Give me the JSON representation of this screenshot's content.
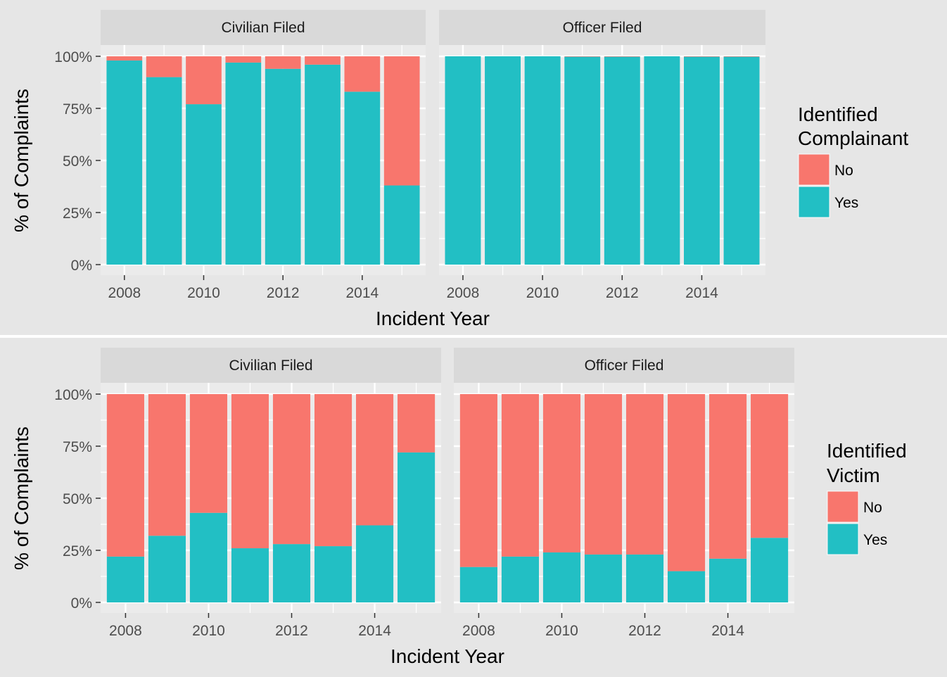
{
  "colors": {
    "no": "#F8766D",
    "yes": "#22BFC4",
    "panel_bg": "#EBEBEB",
    "strip_bg": "#D9D9D9",
    "figure_bg": "#E6E6E6",
    "grid": "#FFFFFF"
  },
  "chart_data": [
    {
      "type": "bar",
      "stacked": true,
      "xlabel": "Incident Year",
      "ylabel": "% of Complaints",
      "ylim": [
        0,
        1
      ],
      "y_ticks": [
        "0%",
        "25%",
        "50%",
        "75%",
        "100%"
      ],
      "x_ticks": [
        "2008",
        "2010",
        "2012",
        "2014"
      ],
      "legend": {
        "title_lines": [
          "Identified",
          "Complainant"
        ],
        "items": [
          "No",
          "Yes"
        ],
        "placement": "right"
      },
      "categories": [
        2008,
        2009,
        2010,
        2011,
        2012,
        2013,
        2014,
        2015
      ],
      "facets": [
        {
          "label": "Civilian Filed",
          "series": [
            {
              "name": "No",
              "values": [
                0.02,
                0.1,
                0.23,
                0.03,
                0.06,
                0.04,
                0.17,
                0.62
              ]
            },
            {
              "name": "Yes",
              "values": [
                0.98,
                0.9,
                0.77,
                0.97,
                0.94,
                0.96,
                0.83,
                0.38
              ]
            }
          ]
        },
        {
          "label": "Officer Filed",
          "series": [
            {
              "name": "No",
              "values": [
                0.0,
                0.0,
                0.0,
                0.002,
                0.002,
                0.0,
                0.002,
                0.002
              ]
            },
            {
              "name": "Yes",
              "values": [
                1.0,
                1.0,
                1.0,
                0.998,
                0.998,
                1.0,
                0.998,
                0.998
              ]
            }
          ]
        }
      ]
    },
    {
      "type": "bar",
      "stacked": true,
      "xlabel": "Incident Year",
      "ylabel": "% of Complaints",
      "ylim": [
        0,
        1
      ],
      "y_ticks": [
        "0%",
        "25%",
        "50%",
        "75%",
        "100%"
      ],
      "x_ticks": [
        "2008",
        "2010",
        "2012",
        "2014"
      ],
      "legend": {
        "title_lines": [
          "Identified",
          "Victim"
        ],
        "items": [
          "No",
          "Yes"
        ],
        "placement": "right"
      },
      "categories": [
        2008,
        2009,
        2010,
        2011,
        2012,
        2013,
        2014,
        2015
      ],
      "facets": [
        {
          "label": "Civilian Filed",
          "series": [
            {
              "name": "No",
              "values": [
                0.78,
                0.68,
                0.57,
                0.74,
                0.72,
                0.73,
                0.63,
                0.28
              ]
            },
            {
              "name": "Yes",
              "values": [
                0.22,
                0.32,
                0.43,
                0.26,
                0.28,
                0.27,
                0.37,
                0.72
              ]
            }
          ]
        },
        {
          "label": "Officer Filed",
          "series": [
            {
              "name": "No",
              "values": [
                0.83,
                0.78,
                0.76,
                0.77,
                0.77,
                0.85,
                0.79,
                0.69
              ]
            },
            {
              "name": "Yes",
              "values": [
                0.17,
                0.22,
                0.24,
                0.23,
                0.23,
                0.15,
                0.21,
                0.31
              ]
            }
          ]
        }
      ]
    }
  ]
}
